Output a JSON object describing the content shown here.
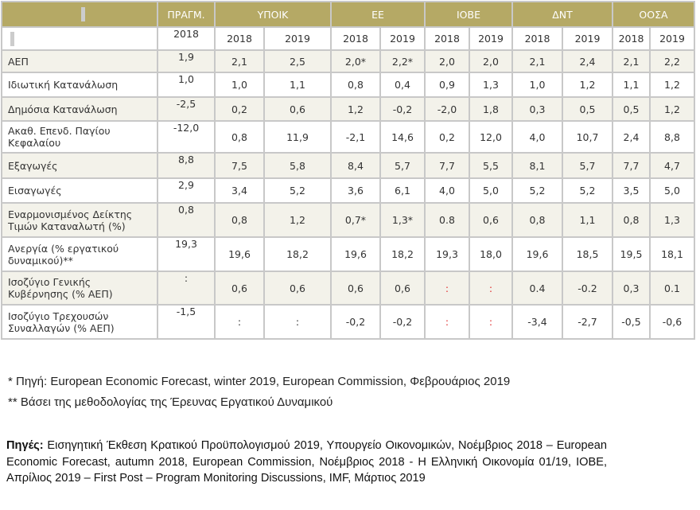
{
  "header": {
    "sources": [
      "ΠΡΑΓΜ.",
      "ΥΠΟΙΚ",
      "ΕΕ",
      "ΙΟΒΕ",
      "ΔΝΤ",
      "ΟΟΣΑ"
    ],
    "years": [
      "2018",
      "2018",
      "2019",
      "2018",
      "2019",
      "2018",
      "2019",
      "2018",
      "2019",
      "2018",
      "2019"
    ]
  },
  "rows": [
    {
      "label": "ΑΕΠ",
      "values": [
        "1,9",
        "2,1",
        "2,5",
        "2,0*",
        "2,2*",
        "2,0",
        "2,0",
        "2,1",
        "2,4",
        "2,1",
        "2,2"
      ]
    },
    {
      "label": "Ιδιωτική Κατανάλωση",
      "values": [
        "1,0",
        "1,0",
        "1,1",
        "0,8",
        "0,4",
        "0,9",
        "1,3",
        "1,0",
        "1,2",
        "1,1",
        "1,2"
      ]
    },
    {
      "label": "Δημόσια Κατανάλωση",
      "values": [
        "-2,5",
        "0,2",
        "0,6",
        "1,2",
        "-0,2",
        "-2,0",
        "1,8",
        "0,3",
        "0,5",
        "0,5",
        "1,2"
      ]
    },
    {
      "label": "Ακαθ. Επενδ. Παγίου Κεφαλαίου",
      "values": [
        "-12,0",
        "0,8",
        "11,9",
        "-2,1",
        "14,6",
        "0,2",
        "12,0",
        "4,0",
        "10,7",
        "2,4",
        "8,8"
      ]
    },
    {
      "label": "Εξαγωγές",
      "values": [
        "8,8",
        "7,5",
        "5,8",
        "8,4",
        "5,7",
        "7,7",
        "5,5",
        "8,1",
        "5,7",
        "7,7",
        "4,7"
      ]
    },
    {
      "label": "Εισαγωγές",
      "values": [
        "2,9",
        "3,4",
        "5,2",
        "3,6",
        "6,1",
        "4,0",
        "5,0",
        "5,2",
        "5,2",
        "3,5",
        "5,0"
      ]
    },
    {
      "label": "Εναρμονισμένος Δείκτης Τιμών Καταναλωτή (%)",
      "values": [
        "0,8",
        "0,8",
        "1,2",
        "0,7*",
        "1,3*",
        "0.8",
        "0,6",
        "0,8",
        "1,1",
        "0,8",
        "1,3"
      ]
    },
    {
      "label": "Ανεργία (% εργατικού δυναμικού)**",
      "values": [
        "19,3",
        "19,6",
        "18,2",
        "19,6",
        "18,2",
        "19,3",
        "18,0",
        "19,6",
        "18,5",
        "19,5",
        "18,1"
      ]
    },
    {
      "label": "Ισοζύγιο Γενικής Κυβέρνησης (% ΑΕΠ)",
      "values": [
        ":",
        "0,6",
        "0,6",
        "0,6",
        "0,6",
        ":",
        ":",
        "0.4",
        "-0.2",
        "0,3",
        "0.1"
      ]
    },
    {
      "label": "Ισοζύγιο Τρεχουσών Συναλλαγών (% ΑΕΠ)",
      "values": [
        "-1,5",
        ":",
        ":",
        "-0,2",
        "-0,2",
        ":",
        ":",
        "-3,4",
        "-2,7",
        "-0,5",
        "-0,6"
      ]
    }
  ],
  "notes": [
    "* Πηγή: European Economic Forecast, winter 2019, European Commission, Φεβρουάριος 2019",
    "** Βάσει της μεθοδολογίας της Έρευνας Εργατικού Δυναμικού"
  ],
  "sources_label": "Πηγές:",
  "sources_text": " Εισηγητική Έκθεση Κρατικού Προϋπολογισμού 2019, Υπουργείο Οικονομικών, Νοέμβριος 2018 – European Economic Forecast, autumn 2018, European Commission, Νοέμβριος 2018 - Η Ελληνική Οικονομία 01/19, ΙΟΒΕ, Απρίλιος 2019 – First Post – Program Monitoring Discussions, IMF, Μάρτιος 2019"
}
